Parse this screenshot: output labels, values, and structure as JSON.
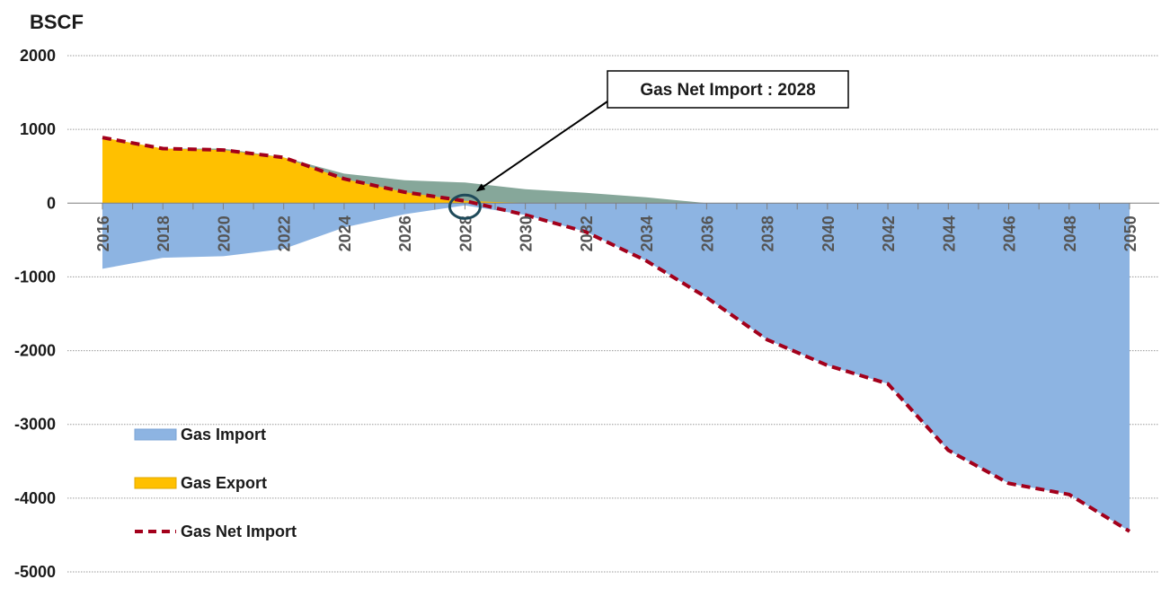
{
  "chart_data": {
    "type": "area",
    "ylabel": "BSCF",
    "ylim": [
      -5000,
      2000
    ],
    "yticks": [
      2000,
      1000,
      0,
      -1000,
      -2000,
      -3000,
      -4000,
      -5000
    ],
    "x": [
      2016,
      2018,
      2020,
      2022,
      2024,
      2026,
      2028,
      2030,
      2032,
      2034,
      2036,
      2038,
      2040,
      2042,
      2044,
      2046,
      2048,
      2050
    ],
    "xtick_labels": [
      "2016",
      "2018",
      "2020",
      "2022",
      "2024",
      "2026",
      "2028",
      "2030",
      "2032",
      "2034",
      "2036",
      "2038",
      "2040",
      "2042",
      "2044",
      "2046",
      "2048",
      "2050"
    ],
    "grid": "horizontal",
    "legend_position": "bottom-left",
    "series": [
      {
        "name": "Gas Import",
        "kind": "area",
        "color": "#8db4e2",
        "values": [
          -890,
          -740,
          -720,
          -620,
          -330,
          -150,
          -30,
          -160,
          -390,
          -780,
          -1280,
          -1850,
          -2200,
          -2450,
          -3350,
          -3800,
          -3950,
          -4450
        ]
      },
      {
        "name": "Gas Export",
        "kind": "area",
        "color": "#ffc000",
        "values": [
          890,
          740,
          740,
          620,
          400,
          310,
          280,
          190,
          140,
          80,
          0,
          0,
          0,
          0,
          0,
          0,
          0,
          0
        ]
      },
      {
        "name": "Gas Net Import",
        "kind": "line",
        "style": "dashed",
        "color": "#a3001b",
        "values": [
          890,
          740,
          720,
          620,
          330,
          150,
          30,
          -160,
          -390,
          -780,
          -1280,
          -1850,
          -2200,
          -2450,
          -3350,
          -3800,
          -3950,
          -4450
        ]
      }
    ],
    "overlap_color": "#86a79a",
    "annotation": {
      "text": "Gas Net Import : 2028",
      "x": 2028,
      "y": 0
    }
  }
}
